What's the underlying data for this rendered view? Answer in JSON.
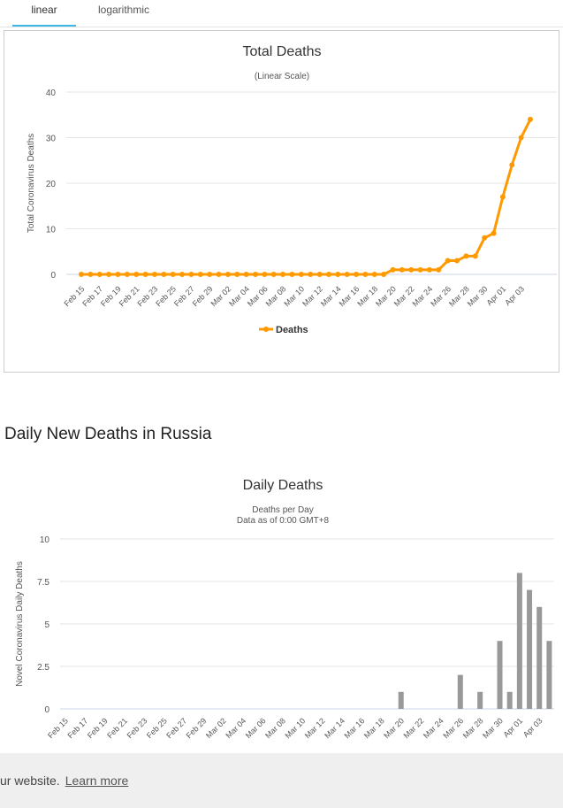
{
  "tabs": {
    "linear": "linear",
    "log": "logarithmic"
  },
  "section_title": "Daily New Deaths in Russia",
  "cookie": {
    "text": "ur website.",
    "link": "Learn more"
  },
  "chart_data": [
    {
      "type": "line",
      "title": "Total Deaths",
      "subtitle": "(Linear Scale)",
      "ylabel": "Total Coronavirus Deaths",
      "ylim": [
        0,
        40
      ],
      "yticks": [
        0,
        10,
        20,
        30,
        40
      ],
      "grid": true,
      "legend": "bottom-center",
      "color": "#FF9900",
      "x_labels": [
        "Feb 15",
        "Feb 17",
        "Feb 19",
        "Feb 21",
        "Feb 23",
        "Feb 25",
        "Feb 27",
        "Feb 29",
        "Mar 02",
        "Mar 04",
        "Mar 06",
        "Mar 08",
        "Mar 10",
        "Mar 12",
        "Mar 14",
        "Mar 16",
        "Mar 18",
        "Mar 20",
        "Mar 22",
        "Mar 24",
        "Mar 26",
        "Mar 28",
        "Mar 30",
        "Apr 01",
        "Apr 03"
      ],
      "series": [
        {
          "name": "Deaths",
          "values": [
            0,
            0,
            0,
            0,
            0,
            0,
            0,
            0,
            0,
            0,
            0,
            0,
            0,
            0,
            0,
            0,
            0,
            0,
            0,
            0,
            0,
            0,
            0,
            0,
            0,
            0,
            0,
            0,
            0,
            0,
            0,
            0,
            0,
            0,
            1,
            1,
            1,
            1,
            1,
            1,
            3,
            3,
            4,
            4,
            8,
            9,
            17,
            24,
            30,
            34
          ]
        }
      ]
    },
    {
      "type": "bar",
      "title": "Daily Deaths",
      "subtitle": "Deaths per Day",
      "subtitle2": "Data as of 0:00 GMT+8",
      "ylabel": "Novel Coronavirus Daily Deaths",
      "ylim": [
        0,
        10
      ],
      "yticks": [
        "0",
        "2.5",
        "5",
        "7.5",
        "10"
      ],
      "grid": true,
      "color": "#999999",
      "x_labels": [
        "Feb 15",
        "Feb 17",
        "Feb 19",
        "Feb 21",
        "Feb 23",
        "Feb 25",
        "Feb 27",
        "Feb 29",
        "Mar 02",
        "Mar 04",
        "Mar 06",
        "Mar 08",
        "Mar 10",
        "Mar 12",
        "Mar 14",
        "Mar 16",
        "Mar 18",
        "Mar 20",
        "Mar 22",
        "Mar 24",
        "Mar 26",
        "Mar 28",
        "Mar 30",
        "Apr 01",
        "Apr 03"
      ],
      "values": [
        0,
        0,
        0,
        0,
        0,
        0,
        0,
        0,
        0,
        0,
        0,
        0,
        0,
        0,
        0,
        0,
        0,
        0,
        0,
        0,
        0,
        0,
        0,
        0,
        0,
        0,
        0,
        0,
        0,
        0,
        0,
        0,
        0,
        0,
        1,
        0,
        0,
        0,
        0,
        0,
        2,
        0,
        1,
        0,
        4,
        1,
        8,
        7,
        6,
        4
      ]
    }
  ]
}
